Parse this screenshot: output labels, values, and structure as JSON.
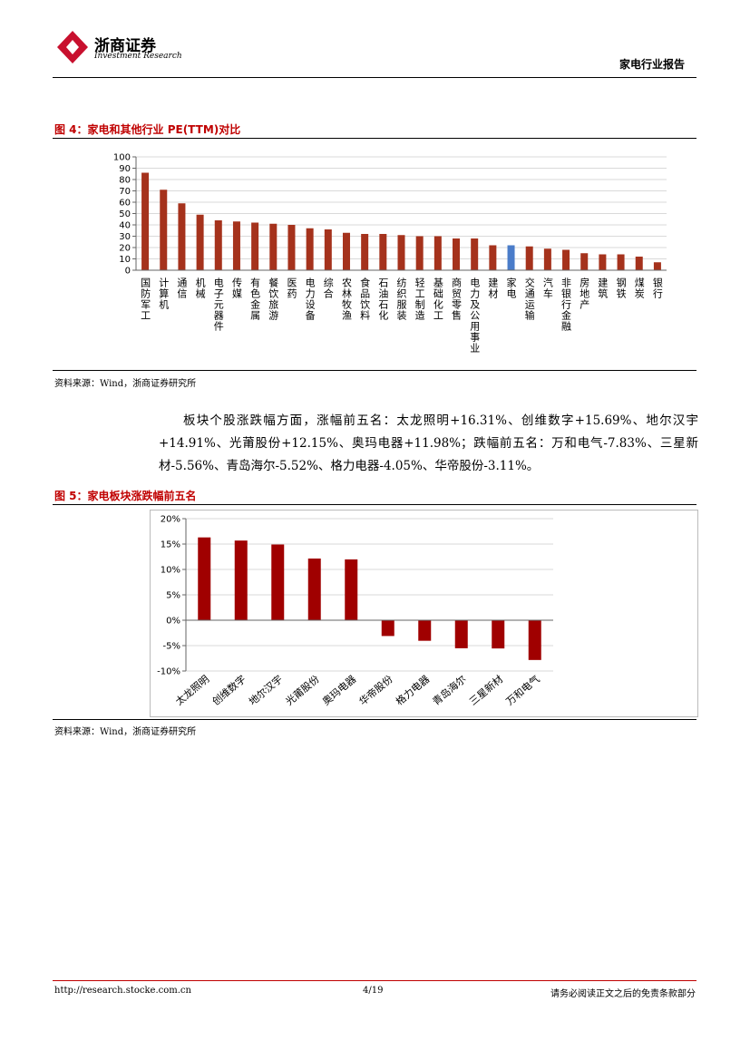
{
  "header": {
    "brand": "浙商证券",
    "brand_en": "Investment Research",
    "report": "家电行业报告"
  },
  "figure4": {
    "title": "图 4：家电和其他行业 PE(TTM)对比",
    "source": "资料来源：Wind，浙商证券研究所"
  },
  "paragraph": "板块个股涨跌幅方面，涨幅前五名：太龙照明+16.31%、创维数字+15.69%、地尔汉宇+14.91%、光莆股份+12.15%、奥玛电器+11.98%；跌幅前五名：万和电气-7.83%、三星新材-5.56%、青岛海尔-5.52%、格力电器-4.05%、华帝股份-3.11%。",
  "figure5": {
    "title": "图 5：家电板块涨跌幅前五名",
    "source": "资料来源：Wind，浙商证券研究所"
  },
  "footer": {
    "url": "http://research.stocke.com.cn",
    "page": "4/19",
    "disclaimer": "请务必阅读正文之后的免责条款部分"
  },
  "chart_data": [
    {
      "type": "bar",
      "categories": [
        "国防军工",
        "计算机",
        "通信",
        "机械",
        "电子元器件",
        "传媒",
        "有色金属",
        "餐饮旅游",
        "医药",
        "电力设备",
        "综合",
        "农林牧渔",
        "食品饮料",
        "石油石化",
        "纺织服装",
        "轻工制造",
        "基础化工",
        "商贸零售",
        "电力及公用事业",
        "建材",
        "家电",
        "交通运输",
        "汽车",
        "非银行金融",
        "房地产",
        "建筑",
        "钢铁",
        "煤炭",
        "银行"
      ],
      "values": [
        86,
        71,
        59,
        49,
        44,
        43,
        42,
        41,
        40,
        37,
        36,
        33,
        32,
        32,
        31,
        30,
        30,
        28,
        28,
        22,
        22,
        21,
        19,
        18,
        15,
        14,
        14,
        12,
        7
      ],
      "colors": [
        "#a5321c",
        "#a5321c",
        "#a5321c",
        "#a5321c",
        "#a5321c",
        "#a5321c",
        "#a5321c",
        "#a5321c",
        "#a5321c",
        "#a5321c",
        "#a5321c",
        "#a5321c",
        "#a5321c",
        "#a5321c",
        "#a5321c",
        "#a5321c",
        "#a5321c",
        "#a5321c",
        "#a5321c",
        "#a5321c",
        "#4a7cc9",
        "#a5321c",
        "#a5321c",
        "#a5321c",
        "#a5321c",
        "#a5321c",
        "#a5321c",
        "#a5321c",
        "#a5321c"
      ],
      "ylim": [
        0,
        100
      ],
      "yticks": [
        0,
        10,
        20,
        30,
        40,
        50,
        60,
        70,
        80,
        90,
        100
      ],
      "grid": true
    },
    {
      "type": "bar",
      "categories": [
        "太龙照明",
        "创维数字",
        "地尔汉宇",
        "光莆股份",
        "奥玛电器",
        "华帝股份",
        "格力电器",
        "青岛海尔",
        "三星新材",
        "万和电气"
      ],
      "values": [
        16.31,
        15.69,
        14.91,
        12.15,
        11.98,
        -3.11,
        -4.05,
        -5.52,
        -5.56,
        -7.83
      ],
      "color": "#a00000",
      "ylim": [
        -10,
        20
      ],
      "yticks": [
        {
          "value": -10,
          "label": "-10%"
        },
        {
          "value": -5,
          "label": "-5%"
        },
        {
          "value": 0,
          "label": "0%"
        },
        {
          "value": 5,
          "label": "5%"
        },
        {
          "value": 10,
          "label": "10%"
        },
        {
          "value": 15,
          "label": "15%"
        },
        {
          "value": 20,
          "label": "20%"
        }
      ],
      "grid": true
    }
  ]
}
